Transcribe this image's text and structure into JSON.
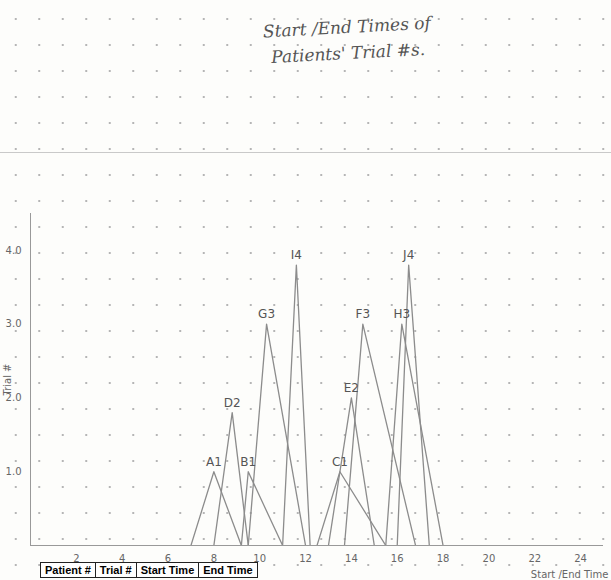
{
  "chart_data": {
    "type": "line",
    "title": "Start /End Times of Patients' Trial #s.",
    "x_label": "Start /End Time",
    "y_label": "Trial #",
    "color": "#8c8c8c",
    "series": [
      {
        "name": "A1",
        "x": [
          7,
          8,
          9.2
        ],
        "values": [
          0,
          1,
          0
        ]
      },
      {
        "name": "D2",
        "x": [
          8,
          8.8,
          9.5
        ],
        "values": [
          0,
          1.8,
          0
        ]
      },
      {
        "name": "B1",
        "x": [
          9.2,
          9.5,
          11
        ],
        "values": [
          0,
          1,
          0
        ]
      },
      {
        "name": "G3",
        "x": [
          9.5,
          10.3,
          12
        ],
        "values": [
          0,
          3,
          0
        ]
      },
      {
        "name": "I4",
        "x": [
          11,
          11.6,
          12.2
        ],
        "values": [
          0,
          3.8,
          0
        ]
      },
      {
        "name": "C1",
        "x": [
          12.5,
          13.5,
          15.5
        ],
        "values": [
          0,
          1,
          0
        ]
      },
      {
        "name": "E2",
        "x": [
          13,
          14,
          15
        ],
        "values": [
          0,
          2,
          0
        ]
      },
      {
        "name": "F3",
        "x": [
          13.7,
          14.5,
          16.8
        ],
        "values": [
          0,
          3,
          0
        ]
      },
      {
        "name": "H3",
        "x": [
          15.5,
          16.2,
          18
        ],
        "values": [
          0,
          3,
          0
        ]
      },
      {
        "name": "J4",
        "x": [
          16,
          16.5,
          17.4
        ],
        "values": [
          0,
          3.8,
          0
        ]
      }
    ],
    "xlim": [
      0,
      25
    ],
    "xticks": [
      2,
      4,
      6,
      8,
      10,
      12,
      14,
      16,
      18,
      20,
      22,
      24
    ],
    "ylim": [
      0,
      4.5
    ],
    "yticks": [
      1,
      2,
      3,
      4
    ],
    "grid": false
  },
  "table": {
    "header": [
      "Patient #",
      "Trial #",
      "Start Time",
      "End Time"
    ]
  }
}
